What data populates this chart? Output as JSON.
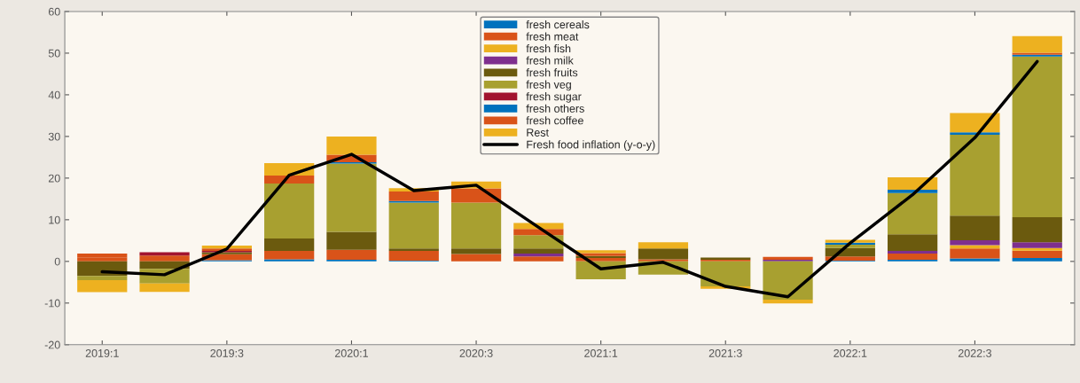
{
  "chart_data": {
    "type": "bar",
    "stacked": true,
    "categories": [
      "2019:1",
      null,
      "2019:3",
      null,
      "2020:1",
      null,
      "2020:3",
      null,
      "2021:1",
      null,
      "2021:3",
      null,
      "2022:1",
      null,
      "2022:3",
      null
    ],
    "ylim": [
      -20,
      60
    ],
    "yticks": [
      -20,
      -10,
      0,
      10,
      20,
      30,
      40,
      50,
      60
    ],
    "grid": false,
    "legend": "top",
    "series": [
      {
        "name": "fresh cereals",
        "color": "#0072bd",
        "values": [
          0,
          0,
          0.3,
          0.5,
          0.4,
          0.2,
          0,
          0,
          0,
          0,
          0,
          0,
          0.2,
          0.4,
          0.7,
          0.8
        ]
      },
      {
        "name": "fresh meat",
        "color": "#d95319",
        "values": [
          1.0,
          1.4,
          1.4,
          2.0,
          2.4,
          2.3,
          1.8,
          1.2,
          0.8,
          0.5,
          0.4,
          0,
          1.0,
          1.5,
          2.4,
          1.8
        ]
      },
      {
        "name": "fresh fish",
        "color": "#edb120",
        "values": [
          0,
          0,
          0,
          0,
          0,
          0,
          0,
          0,
          0,
          0,
          0,
          0,
          0,
          0,
          0.8,
          0.6
        ]
      },
      {
        "name": "fresh milk",
        "color": "#7e2f8e",
        "values": [
          0,
          0,
          0,
          0,
          0,
          0,
          0,
          0.7,
          0,
          0,
          0,
          0.4,
          0,
          0.6,
          1.2,
          1.4
        ]
      },
      {
        "name": "fresh fruits",
        "color": "#6b5a0e",
        "values": [
          -3.5,
          -1.8,
          0.5,
          3.0,
          4.3,
          0.6,
          1.3,
          1.2,
          0.5,
          2.6,
          0.5,
          0,
          2.0,
          4.0,
          5.9,
          6.0
        ]
      },
      {
        "name": "fresh veg",
        "color": "#a8a030",
        "values": [
          -1.0,
          -3.5,
          0,
          13.2,
          16.4,
          11.0,
          11.0,
          3.2,
          -4.3,
          -3.2,
          -6.0,
          -9.2,
          0.8,
          9.9,
          19.4,
          38.6
        ]
      },
      {
        "name": "fresh sugar",
        "color": "#a2142f",
        "values": [
          0,
          0.8,
          0.3,
          0,
          0,
          0,
          0,
          0,
          0,
          0,
          0,
          0,
          0,
          0,
          0,
          0
        ]
      },
      {
        "name": "fresh others",
        "color": "#0072bd",
        "values": [
          0,
          0,
          0,
          0,
          0.3,
          0.4,
          0,
          0,
          0,
          0,
          0,
          0,
          0.5,
          0.8,
          0.6,
          0.4
        ]
      },
      {
        "name": "fresh coffee",
        "color": "#d95319",
        "values": [
          0.9,
          0,
          0.6,
          1.9,
          1.8,
          2.3,
          3.4,
          1.5,
          0.7,
          0,
          0,
          0.7,
          0,
          0,
          0,
          0.5
        ]
      },
      {
        "name": "Rest",
        "color": "#edb120",
        "values": [
          -2.9,
          -2.0,
          0.7,
          3.0,
          4.4,
          0.8,
          1.7,
          1.4,
          0.7,
          1.5,
          -0.6,
          -0.9,
          0.7,
          3.0,
          4.6,
          4.0
        ]
      },
      {
        "name": "Fresh food inflation (y-o-y)",
        "type": "line",
        "color": "#000000",
        "values": [
          -2.5,
          -3.2,
          3.0,
          20.7,
          25.7,
          17.0,
          18.3,
          8.2,
          -1.8,
          -0.2,
          -6.0,
          -8.5,
          4.4,
          16.0,
          29.7,
          48.0
        ]
      }
    ]
  }
}
